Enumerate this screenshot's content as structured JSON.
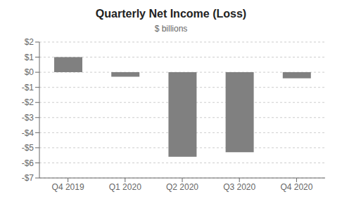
{
  "chart_data": {
    "type": "bar",
    "title": "Quarterly Net Income (Loss)",
    "subtitle": "$ billions",
    "categories": [
      "Q4 2019",
      "Q1 2020",
      "Q2 2020",
      "Q3 2020",
      "Q4 2020"
    ],
    "values": [
      1.0,
      -0.3,
      -5.6,
      -5.3,
      -0.4
    ],
    "color": "#808080",
    "ylim": [
      -7,
      2
    ],
    "yticks": [
      {
        "value": -7,
        "label": "-$7"
      },
      {
        "value": -6,
        "label": "-$6"
      },
      {
        "value": -5,
        "label": "-$5"
      },
      {
        "value": -4,
        "label": "-$4"
      },
      {
        "value": -3,
        "label": "-$3"
      },
      {
        "value": -2,
        "label": "-$2"
      },
      {
        "value": -1,
        "label": "-$1"
      },
      {
        "value": 0,
        "label": "$0"
      },
      {
        "value": 1,
        "label": "$1"
      },
      {
        "value": 2,
        "label": "$2"
      }
    ],
    "grid": true
  }
}
